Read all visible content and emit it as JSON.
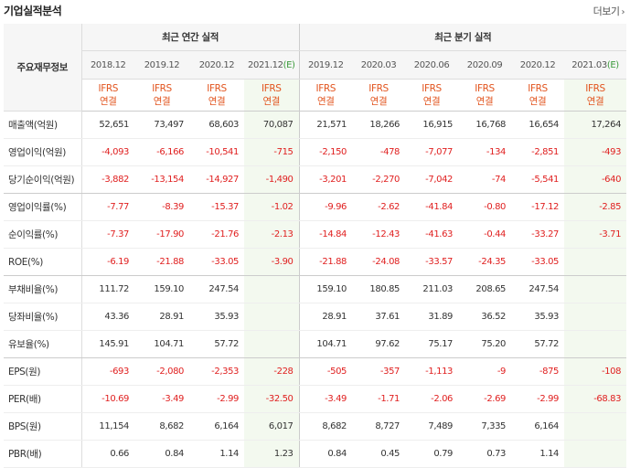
{
  "header": {
    "title": "기업실적분석",
    "more_label": "더보기"
  },
  "table": {
    "corner_label": "주요재무정보",
    "annual_group_label": "최근 연간 실적",
    "quarter_group_label": "최근 분기 실적",
    "periods": [
      "2018.12",
      "2019.12",
      "2020.12",
      "2021.12",
      "2019.12",
      "2020.03",
      "2020.06",
      "2020.09",
      "2020.12",
      "2021.03"
    ],
    "estimate_mark": "(E)",
    "standard_top": "IFRS",
    "standard_bottom": "연결",
    "rows": [
      {
        "label": "매출액(억원)",
        "values": [
          "52,651",
          "73,497",
          "68,603",
          "70,087",
          "21,571",
          "18,266",
          "16,915",
          "16,768",
          "16,654",
          "17,264"
        ]
      },
      {
        "label": "영업이익(억원)",
        "values": [
          "-4,093",
          "-6,166",
          "-10,541",
          "-715",
          "-2,150",
          "-478",
          "-7,077",
          "-134",
          "-2,851",
          "-493"
        ]
      },
      {
        "label": "당기순이익(억원)",
        "values": [
          "-3,882",
          "-13,154",
          "-14,927",
          "-1,490",
          "-3,201",
          "-2,270",
          "-7,042",
          "-74",
          "-5,541",
          "-640"
        ]
      },
      {
        "label": "영업이익률(%)",
        "values": [
          "-7.77",
          "-8.39",
          "-15.37",
          "-1.02",
          "-9.96",
          "-2.62",
          "-41.84",
          "-0.80",
          "-17.12",
          "-2.85"
        ]
      },
      {
        "label": "순이익률(%)",
        "values": [
          "-7.37",
          "-17.90",
          "-21.76",
          "-2.13",
          "-14.84",
          "-12.43",
          "-41.63",
          "-0.44",
          "-33.27",
          "-3.71"
        ]
      },
      {
        "label": "ROE(%)",
        "values": [
          "-6.19",
          "-21.88",
          "-33.05",
          "-3.90",
          "-21.88",
          "-24.08",
          "-33.57",
          "-24.35",
          "-33.05",
          ""
        ]
      },
      {
        "label": "부채비율(%)",
        "values": [
          "111.72",
          "159.10",
          "247.54",
          "",
          "159.10",
          "180.85",
          "211.03",
          "208.65",
          "247.54",
          ""
        ]
      },
      {
        "label": "당좌비율(%)",
        "values": [
          "43.36",
          "28.91",
          "35.93",
          "",
          "28.91",
          "37.61",
          "31.89",
          "36.52",
          "35.93",
          ""
        ]
      },
      {
        "label": "유보율(%)",
        "values": [
          "145.91",
          "104.71",
          "57.72",
          "",
          "104.71",
          "97.62",
          "75.17",
          "75.20",
          "57.72",
          ""
        ]
      },
      {
        "label": "EPS(원)",
        "values": [
          "-693",
          "-2,080",
          "-2,353",
          "-228",
          "-505",
          "-357",
          "-1,113",
          "-9",
          "-875",
          "-108"
        ]
      },
      {
        "label": "PER(배)",
        "values": [
          "-10.69",
          "-3.49",
          "-2.99",
          "-32.50",
          "-3.49",
          "-1.71",
          "-2.06",
          "-2.69",
          "-2.99",
          "-68.83"
        ]
      },
      {
        "label": "BPS(원)",
        "values": [
          "11,154",
          "8,682",
          "6,164",
          "6,017",
          "8,682",
          "8,727",
          "7,489",
          "7,335",
          "6,164",
          ""
        ]
      },
      {
        "label": "PBR(배)",
        "values": [
          "0.66",
          "0.84",
          "1.14",
          "1.23",
          "0.84",
          "0.45",
          "0.79",
          "0.73",
          "1.14",
          ""
        ]
      }
    ]
  }
}
